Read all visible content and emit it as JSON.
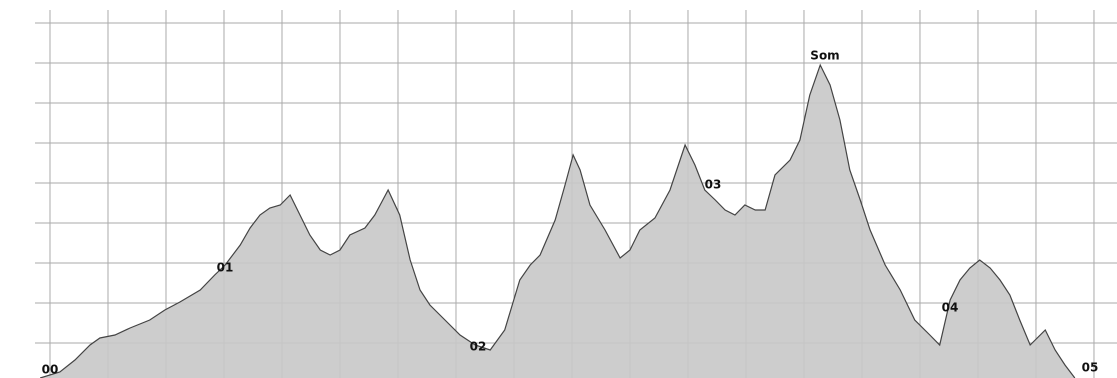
{
  "chart_data": {
    "type": "area",
    "annotations": [
      "00",
      "01",
      "02",
      "03",
      "Som",
      "04",
      "05"
    ],
    "x": [
      -0.17,
      0.17,
      0.43,
      0.69,
      0.86,
      1.12,
      1.38,
      1.72,
      1.98,
      2.24,
      2.59,
      2.84,
      3.02,
      3.28,
      3.45,
      3.62,
      3.79,
      3.97,
      4.14,
      4.31,
      4.48,
      4.66,
      4.83,
      5.0,
      5.17,
      5.43,
      5.6,
      5.83,
      6.03,
      6.21,
      6.38,
      6.55,
      6.81,
      7.07,
      7.33,
      7.59,
      7.84,
      8.1,
      8.28,
      8.45,
      8.71,
      8.88,
      9.02,
      9.14,
      9.31,
      9.57,
      9.83,
      10.0,
      10.17,
      10.43,
      10.69,
      10.95,
      11.12,
      11.29,
      11.47,
      11.64,
      11.81,
      11.98,
      12.16,
      12.33,
      12.5,
      12.76,
      12.93,
      13.1,
      13.28,
      13.45,
      13.62,
      13.79,
      13.97,
      14.14,
      14.4,
      14.66,
      14.91,
      15.17,
      15.34,
      15.52,
      15.69,
      15.86,
      16.03,
      16.21,
      16.38,
      16.55,
      16.72,
      16.9,
      17.16,
      17.33,
      17.5,
      17.67
    ],
    "values": [
      -87.5,
      -72.5,
      -42.5,
      -5,
      12.5,
      20,
      37.5,
      57.5,
      82.5,
      102.5,
      132.5,
      170,
      195,
      245,
      287.5,
      320,
      337.5,
      345,
      370,
      320,
      270,
      232.5,
      220,
      232.5,
      270,
      287.5,
      320,
      382.5,
      320,
      207.5,
      132.5,
      95,
      57.5,
      20,
      -5,
      -17.5,
      32.5,
      157.5,
      195,
      220,
      307.5,
      395,
      470,
      432.5,
      345,
      282.5,
      212.5,
      232.5,
      282.5,
      312.5,
      382.5,
      495,
      445,
      382.5,
      357.5,
      332.5,
      320,
      345,
      332.5,
      332.5,
      420,
      457.5,
      507.5,
      620,
      695,
      645,
      557.5,
      432.5,
      357.5,
      282.5,
      195,
      132.5,
      57.5,
      20,
      -5,
      107.5,
      157.5,
      187.5,
      207.5,
      187.5,
      157.5,
      120,
      57.5,
      -5,
      32.5,
      -17.5,
      -55,
      -87.5
    ],
    "color": "#c8c8c8",
    "line_color": "#444444",
    "xlim": [
      -0.862,
      18.397
    ],
    "xticks": [
      0,
      1,
      2,
      3,
      4,
      5,
      6,
      7,
      8,
      9,
      10,
      11,
      12,
      13,
      14,
      15,
      16,
      17,
      18
    ],
    "ylim": [
      -87.5,
      850
    ],
    "yticks": [
      0,
      100,
      200,
      300,
      400,
      500,
      600,
      700,
      800
    ],
    "grid": true
  }
}
